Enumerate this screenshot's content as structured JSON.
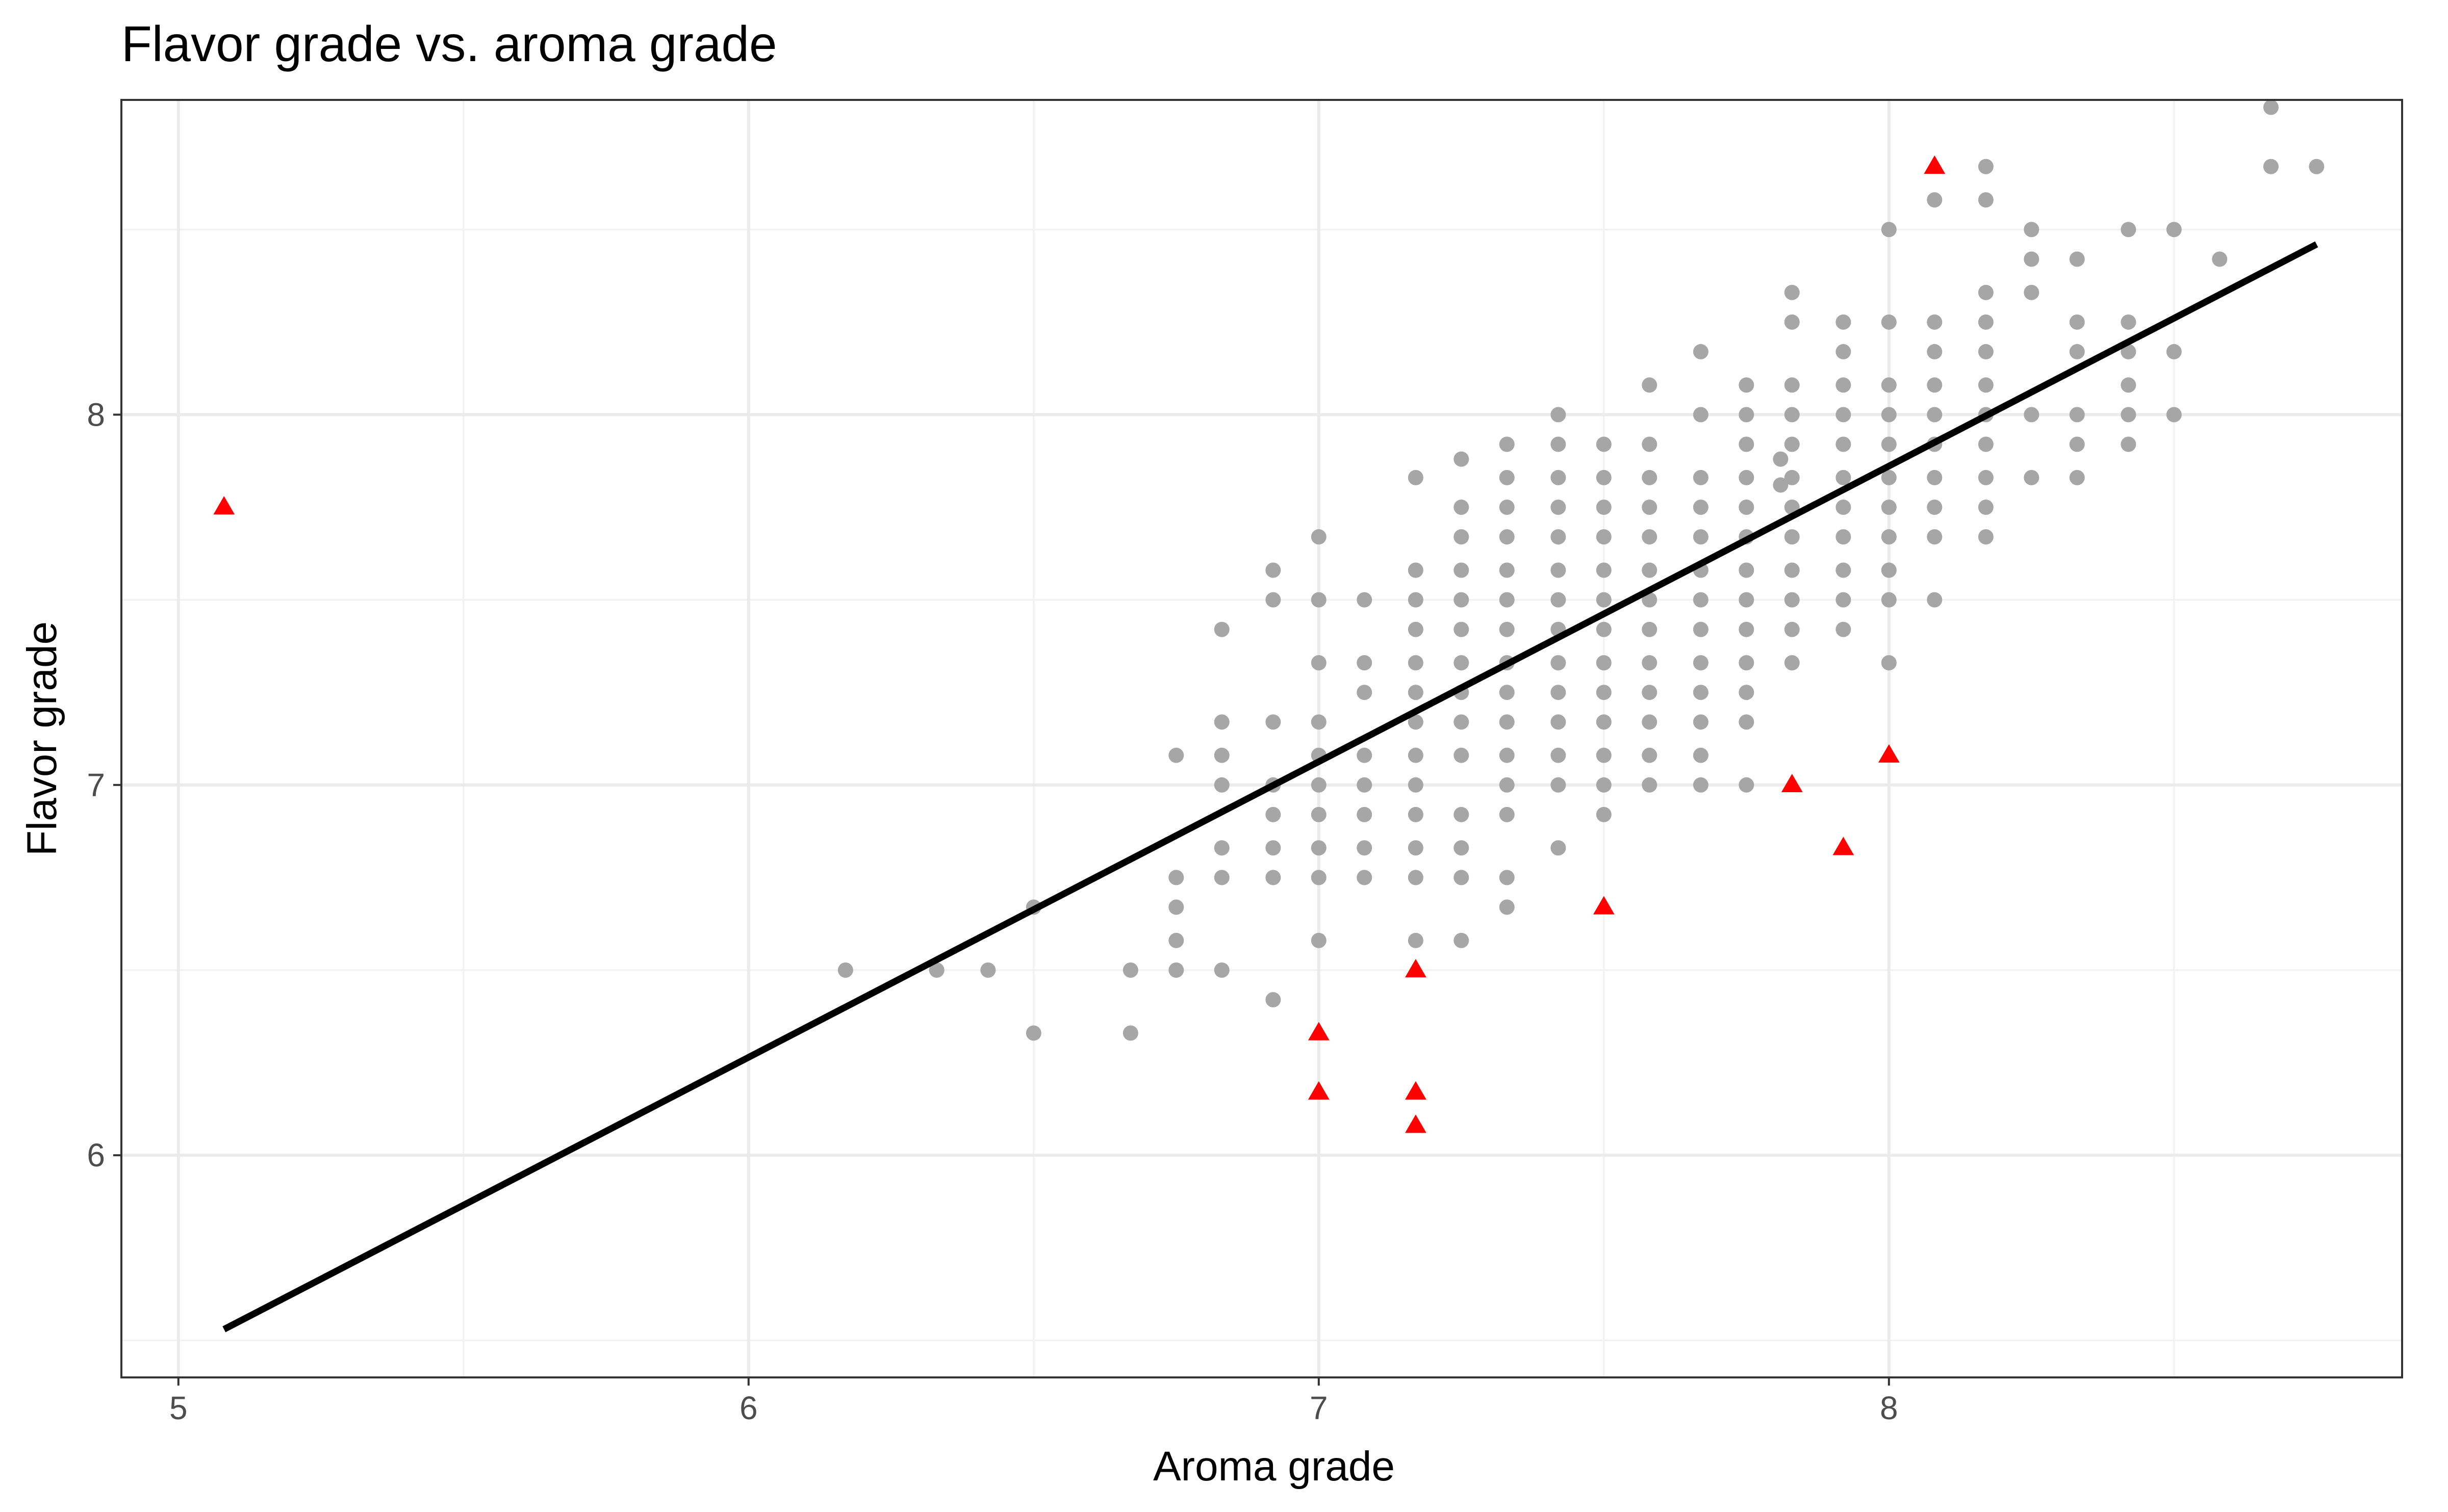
{
  "chart_data": {
    "type": "scatter",
    "title": "Flavor grade vs. aroma grade",
    "xlabel": "Aroma grade",
    "ylabel": "Flavor grade",
    "xlim": [
      4.9,
      8.9
    ],
    "ylim": [
      5.4,
      8.85
    ],
    "x_ticks": [
      5,
      6,
      7,
      8
    ],
    "y_ticks": [
      6,
      7,
      8
    ],
    "x_minor": [
      5.5,
      6.5,
      7.5,
      8.5
    ],
    "y_minor": [
      5.5,
      6.5,
      7.5,
      8.5
    ],
    "grid": true,
    "legend": "none",
    "colors": {
      "points": "#a6a6a6",
      "outliers": "#ff0000",
      "fit_line": "#000000"
    },
    "fit_line": {
      "x": [
        5.08,
        8.75
      ],
      "y": [
        5.53,
        8.46
      ]
    },
    "outliers": {
      "x": [
        5.08,
        7.0,
        7.0,
        7.17,
        7.17,
        7.17,
        7.5,
        7.83,
        7.92,
        8.0,
        8.08
      ],
      "y": [
        7.75,
        6.33,
        6.17,
        6.5,
        6.17,
        6.08,
        6.67,
        7.0,
        6.83,
        7.08,
        8.67
      ]
    },
    "columns": [
      {
        "x": 6.17,
        "y": [
          6.5
        ]
      },
      {
        "x": 6.33,
        "y": [
          6.5
        ]
      },
      {
        "x": 6.42,
        "y": [
          6.5
        ]
      },
      {
        "x": 6.5,
        "y": [
          6.67,
          6.33
        ]
      },
      {
        "x": 6.67,
        "y": [
          6.5,
          6.33
        ]
      },
      {
        "x": 6.75,
        "y": [
          7.08,
          6.75,
          6.67,
          6.58,
          6.5
        ]
      },
      {
        "x": 6.83,
        "y": [
          7.42,
          7.17,
          7.08,
          7.0,
          6.83,
          6.75,
          6.5
        ]
      },
      {
        "x": 6.92,
        "y": [
          7.58,
          7.5,
          7.17,
          7.0,
          6.92,
          6.83,
          6.75,
          6.42
        ]
      },
      {
        "x": 7.0,
        "y": [
          7.67,
          7.5,
          7.33,
          7.17,
          7.08,
          7.0,
          6.92,
          6.83,
          6.75,
          6.58
        ]
      },
      {
        "x": 7.08,
        "y": [
          7.5,
          7.33,
          7.25,
          7.08,
          7.0,
          6.92,
          6.83,
          6.75
        ]
      },
      {
        "x": 7.17,
        "y": [
          7.83,
          7.58,
          7.5,
          7.42,
          7.33,
          7.25,
          7.17,
          7.08,
          7.0,
          6.92,
          6.83,
          6.75,
          6.58
        ]
      },
      {
        "x": 7.25,
        "y": [
          7.88,
          7.75,
          7.67,
          7.58,
          7.5,
          7.42,
          7.33,
          7.25,
          7.17,
          7.08,
          6.92,
          6.83,
          6.75,
          6.58
        ]
      },
      {
        "x": 7.33,
        "y": [
          7.92,
          7.83,
          7.75,
          7.67,
          7.58,
          7.5,
          7.42,
          7.33,
          7.25,
          7.17,
          7.08,
          7.0,
          6.92,
          6.75,
          6.67
        ]
      },
      {
        "x": 7.42,
        "y": [
          8.0,
          7.92,
          7.83,
          7.75,
          7.67,
          7.58,
          7.5,
          7.42,
          7.33,
          7.25,
          7.17,
          7.08,
          7.0,
          6.83
        ]
      },
      {
        "x": 7.5,
        "y": [
          7.92,
          7.83,
          7.75,
          7.67,
          7.58,
          7.5,
          7.42,
          7.33,
          7.25,
          7.17,
          7.08,
          7.0,
          6.92
        ]
      },
      {
        "x": 7.58,
        "y": [
          8.08,
          7.92,
          7.83,
          7.75,
          7.67,
          7.58,
          7.5,
          7.42,
          7.33,
          7.25,
          7.17,
          7.08,
          7.0
        ]
      },
      {
        "x": 7.67,
        "y": [
          8.17,
          8.0,
          7.83,
          7.75,
          7.67,
          7.58,
          7.5,
          7.42,
          7.33,
          7.25,
          7.17,
          7.08,
          7.0
        ]
      },
      {
        "x": 7.75,
        "y": [
          8.08,
          8.0,
          7.92,
          7.83,
          7.75,
          7.67,
          7.58,
          7.5,
          7.42,
          7.33,
          7.25,
          7.17,
          7.0
        ]
      },
      {
        "x": 7.81,
        "y": [
          7.88,
          7.81
        ]
      },
      {
        "x": 7.83,
        "y": [
          8.33,
          8.25,
          8.08,
          8.0,
          7.92,
          7.83,
          7.75,
          7.67,
          7.58,
          7.5,
          7.42,
          7.33
        ]
      },
      {
        "x": 7.92,
        "y": [
          8.25,
          8.17,
          8.08,
          8.0,
          7.92,
          7.83,
          7.75,
          7.67,
          7.58,
          7.5,
          7.42
        ]
      },
      {
        "x": 8.0,
        "y": [
          8.5,
          8.25,
          8.08,
          8.0,
          7.92,
          7.83,
          7.75,
          7.67,
          7.58,
          7.5,
          7.33
        ]
      },
      {
        "x": 8.08,
        "y": [
          8.58,
          8.25,
          8.17,
          8.08,
          8.0,
          7.92,
          7.83,
          7.75,
          7.67,
          7.5
        ]
      },
      {
        "x": 8.17,
        "y": [
          8.67,
          8.58,
          8.33,
          8.25,
          8.17,
          8.08,
          8.0,
          7.92,
          7.83,
          7.75,
          7.67
        ]
      },
      {
        "x": 8.25,
        "y": [
          8.5,
          8.42,
          8.33,
          8.0,
          7.83
        ]
      },
      {
        "x": 8.33,
        "y": [
          8.42,
          8.25,
          8.17,
          8.0,
          7.92,
          7.83
        ]
      },
      {
        "x": 8.42,
        "y": [
          8.5,
          8.25,
          8.17,
          8.08,
          8.0,
          7.92
        ]
      },
      {
        "x": 8.5,
        "y": [
          8.5,
          8.17,
          8.0
        ]
      },
      {
        "x": 8.58,
        "y": [
          8.42
        ]
      },
      {
        "x": 8.67,
        "y": [
          8.83,
          8.67
        ]
      },
      {
        "x": 8.75,
        "y": [
          8.67
        ]
      }
    ]
  }
}
